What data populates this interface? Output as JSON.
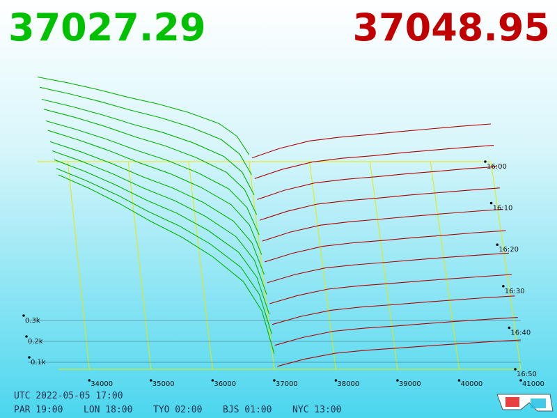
{
  "chart_data": {
    "type": "depth3d",
    "bid_price": "37027.29",
    "ask_price": "37048.95",
    "bid_color": "#00b400",
    "ask_color": "#b00000",
    "xlim": [
      33500,
      41000
    ],
    "xticks": [
      34000,
      35000,
      36000,
      37000,
      38000,
      39000,
      40000,
      41000
    ],
    "ylim": [
      0,
      1000
    ],
    "yticks": [
      {
        "value": 100,
        "label": "0.1k"
      },
      {
        "value": 200,
        "label": "0.2k"
      },
      {
        "value": 300,
        "label": "0.3k"
      }
    ],
    "time_ticks": [
      "16:00",
      "16:10",
      "16:20",
      "16:30",
      "16:40",
      "16:50"
    ],
    "bid_x": [
      33500,
      34000,
      34500,
      35000,
      35500,
      36000,
      36500,
      36800,
      37000
    ],
    "ask_x": [
      37050,
      37500,
      38000,
      38500,
      39000,
      39500,
      40000,
      40500,
      41000
    ],
    "bid_series": [
      {
        "values": [
          450,
          419,
          383,
          342,
          306,
          261,
          203,
          135,
          36
        ]
      },
      {
        "values": [
          500,
          465,
          425,
          380,
          340,
          290,
          225,
          150,
          40
        ]
      },
      {
        "values": [
          540,
          502,
          459,
          410,
          367,
          313,
          243,
          162,
          43
        ]
      },
      {
        "values": [
          590,
          549,
          502,
          448,
          401,
          342,
          266,
          177,
          47
        ]
      },
      {
        "values": [
          630,
          586,
          536,
          479,
          428,
          365,
          284,
          189,
          50
        ]
      },
      {
        "values": [
          680,
          632,
          578,
          517,
          462,
          394,
          306,
          204,
          54
        ]
      },
      {
        "values": [
          720,
          670,
          612,
          547,
          490,
          418,
          324,
          216,
          58
        ]
      },
      {
        "values": [
          770,
          716,
          655,
          585,
          524,
          447,
          347,
          231,
          62
        ]
      },
      {
        "values": [
          820,
          763,
          697,
          623,
          558,
          476,
          369,
          246,
          66
        ]
      },
      {
        "values": [
          870,
          809,
          740,
          661,
          592,
          505,
          392,
          261,
          70
        ]
      },
      {
        "values": [
          930,
          865,
          791,
          707,
          632,
          539,
          419,
          279,
          74
        ]
      }
    ],
    "ask_series": [
      {
        "values": [
          20,
          70,
          110,
          130,
          144,
          160,
          174,
          188,
          200
        ]
      },
      {
        "values": [
          20,
          68,
          107,
          127,
          140,
          156,
          170,
          183,
          195
        ]
      },
      {
        "values": [
          19,
          67,
          105,
          124,
          137,
          152,
          165,
          179,
          190
        ]
      },
      {
        "values": [
          19,
          65,
          102,
          120,
          133,
          148,
          161,
          174,
          185
        ]
      },
      {
        "values": [
          18,
          63,
          99,
          117,
          130,
          144,
          157,
          169,
          180
        ]
      },
      {
        "values": [
          18,
          61,
          96,
          114,
          126,
          140,
          152,
          165,
          175
        ]
      },
      {
        "values": [
          17,
          58,
          91,
          107,
          119,
          132,
          144,
          155,
          165
        ]
      },
      {
        "values": [
          16,
          56,
          88,
          104,
          115,
          128,
          139,
          150,
          160
        ]
      },
      {
        "values": [
          16,
          54,
          85,
          101,
          112,
          124,
          135,
          146,
          155
        ]
      },
      {
        "values": [
          15,
          53,
          83,
          98,
          108,
          120,
          131,
          141,
          150
        ]
      },
      {
        "values": [
          14,
          49,
          77,
          91,
          101,
          112,
          122,
          132,
          140
        ]
      }
    ]
  },
  "footer": {
    "utc": "UTC 2022-05-05 17:00",
    "zones": [
      "PAR 19:00",
      "LON 18:00",
      "TYO 02:00",
      "BJS 01:00",
      "NYC 13:00"
    ]
  }
}
